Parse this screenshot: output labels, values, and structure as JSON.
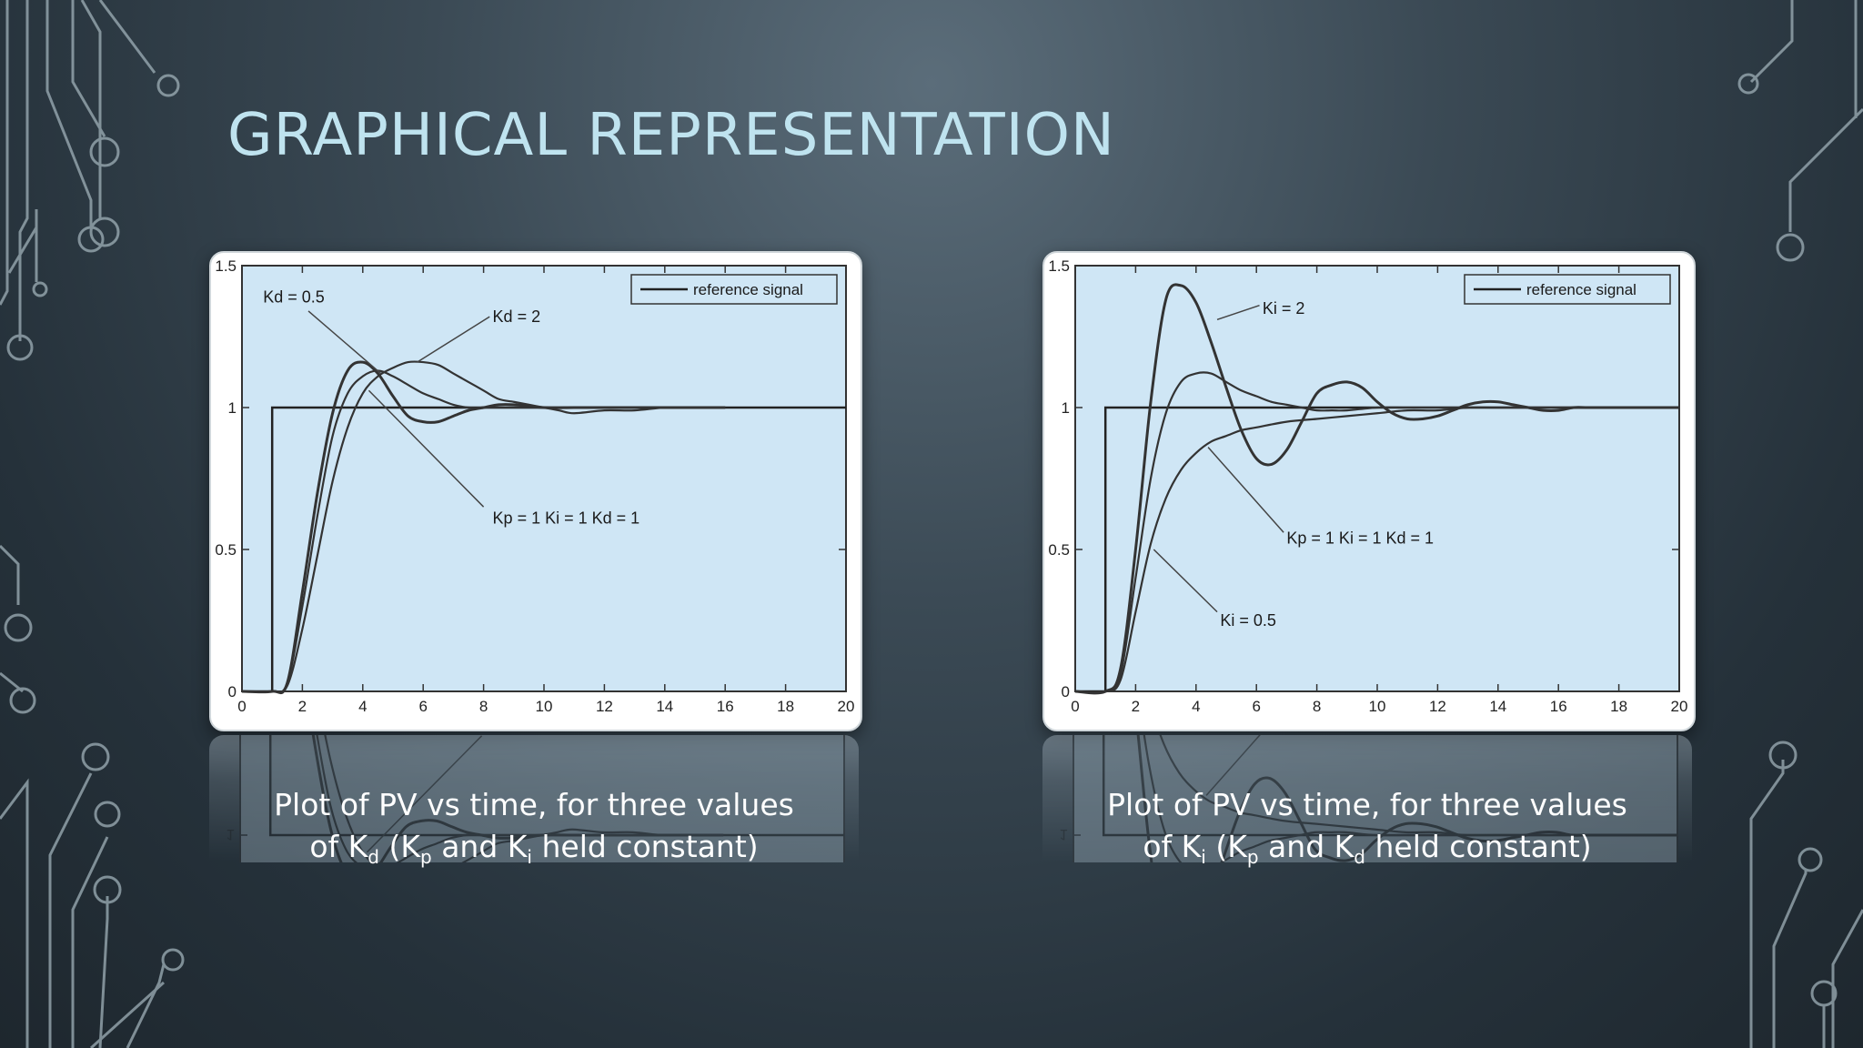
{
  "slide": {
    "title": "GRAPHICAL REPRESENTATION",
    "background_color": "#2e3b45",
    "title_color": "#bfe3ef",
    "decoration": "circuit-lines"
  },
  "captions": [
    {
      "line1": "Plot of PV vs time, for three values",
      "pre": "of K",
      "sub1": "d",
      "mid1": " (K",
      "sub2": "p",
      "mid2": " and K",
      "sub3": "i",
      "post": " held constant)"
    },
    {
      "line1": "Plot of PV vs time, for three values",
      "pre": "of K",
      "sub1": "i",
      "mid1": " (K",
      "sub2": "p",
      "mid2": " and K",
      "sub3": "d",
      "post": " held constant)"
    }
  ],
  "chart_data": [
    {
      "type": "line",
      "title": "",
      "xlabel": "",
      "ylabel": "",
      "xlim": [
        0,
        20
      ],
      "ylim": [
        0,
        1.5
      ],
      "x_ticks": [
        "0",
        "2",
        "4",
        "6",
        "8",
        "10",
        "12",
        "14",
        "16",
        "18",
        "20"
      ],
      "y_ticks": [
        {
          "value": 0,
          "label": "0"
        },
        {
          "value": 0.5,
          "label": "0.5"
        },
        {
          "value": 1,
          "label": "1"
        },
        {
          "value": 1.5,
          "label": "1.5"
        }
      ],
      "legend": {
        "position": "top-right",
        "entries": [
          "reference signal"
        ]
      },
      "plot_bg": "#cfe6f5",
      "reference": {
        "name": "reference signal",
        "x": [
          0,
          1,
          1,
          20
        ],
        "y": [
          0,
          0,
          1,
          1
        ]
      },
      "series": [
        {
          "x": [
            0,
            1,
            1.5,
            2,
            2.5,
            3,
            3.5,
            4,
            4.5,
            5,
            5.5,
            6,
            6.5,
            7,
            7.5,
            8,
            8.5,
            9,
            10,
            11,
            12,
            13,
            14,
            15,
            16
          ],
          "y": [
            0,
            0,
            0.03,
            0.35,
            0.7,
            0.98,
            1.13,
            1.16,
            1.12,
            1.04,
            0.97,
            0.95,
            0.95,
            0.97,
            0.99,
            1.0,
            1.01,
            1.01,
            1.0,
            1.0,
            1.0,
            1.0,
            1.0,
            1.0,
            1.0
          ]
        },
        {
          "x": [
            0,
            1,
            1.5,
            2,
            2.5,
            3,
            3.5,
            4,
            4.5,
            5,
            5.5,
            6,
            6.5,
            7,
            7.5,
            8,
            8.5,
            9,
            10,
            11,
            12,
            13,
            14,
            15,
            16
          ],
          "y": [
            0,
            0,
            0.03,
            0.3,
            0.62,
            0.9,
            1.05,
            1.11,
            1.13,
            1.11,
            1.08,
            1.05,
            1.03,
            1.01,
            1.0,
            1.0,
            1.0,
            1.0,
            1.0,
            1.0,
            1.0,
            1.0,
            1.0,
            1.0,
            1.0
          ]
        },
        {
          "x": [
            0,
            1,
            1.5,
            2,
            2.5,
            3,
            3.5,
            4,
            4.5,
            5,
            5.5,
            6,
            6.5,
            7,
            7.5,
            8,
            8.5,
            9,
            9.5,
            10,
            10.5,
            11,
            12,
            13,
            14,
            15,
            16
          ],
          "y": [
            0,
            0,
            0.02,
            0.22,
            0.48,
            0.74,
            0.93,
            1.05,
            1.11,
            1.14,
            1.16,
            1.16,
            1.15,
            1.12,
            1.09,
            1.06,
            1.03,
            1.02,
            1.01,
            1.0,
            0.99,
            0.98,
            0.99,
            0.99,
            1.0,
            1.0,
            1.0
          ]
        }
      ],
      "annotations": [
        {
          "text": "Kd = 0.5",
          "label_x": 0.7,
          "label_y": 1.39,
          "line": [
            [
              2.2,
              1.34
            ],
            [
              4.6,
              1.12
            ]
          ]
        },
        {
          "text": "Kd = 2",
          "label_x": 8.3,
          "label_y": 1.32,
          "line": [
            [
              8.2,
              1.32
            ],
            [
              5.8,
              1.16
            ]
          ]
        },
        {
          "text": "Kp = 1  Ki = 1  Kd = 1",
          "label_x": 8.3,
          "label_y": 0.61,
          "line": [
            [
              8.0,
              0.65
            ],
            [
              4.2,
              1.06
            ]
          ]
        }
      ]
    },
    {
      "type": "line",
      "title": "",
      "xlabel": "",
      "ylabel": "",
      "xlim": [
        0,
        20
      ],
      "ylim": [
        0,
        1.5
      ],
      "x_ticks": [
        "0",
        "2",
        "4",
        "6",
        "8",
        "10",
        "12",
        "14",
        "16",
        "18",
        "20"
      ],
      "y_ticks": [
        {
          "value": 0,
          "label": "0"
        },
        {
          "value": 0.5,
          "label": "0.5"
        },
        {
          "value": 1,
          "label": "1"
        },
        {
          "value": 1.5,
          "label": "1.5"
        }
      ],
      "legend": {
        "position": "top-right",
        "entries": [
          "reference signal"
        ]
      },
      "plot_bg": "#cfe6f5",
      "reference": {
        "name": "reference signal",
        "x": [
          0,
          1,
          1,
          20
        ],
        "y": [
          0,
          0,
          1,
          1
        ]
      },
      "series": [
        {
          "x": [
            0,
            1,
            1.5,
            2,
            2.5,
            3,
            3.5,
            4,
            4.5,
            5,
            5.5,
            6,
            6.5,
            7,
            7.5,
            8,
            8.5,
            9,
            9.5,
            10,
            10.5,
            11,
            11.5,
            12,
            12.5,
            13,
            13.5,
            14,
            14.5,
            15,
            15.5,
            16,
            16.5,
            17,
            18,
            19,
            20
          ],
          "y": [
            0,
            0,
            0.08,
            0.5,
            1.02,
            1.38,
            1.43,
            1.37,
            1.23,
            1.07,
            0.92,
            0.82,
            0.8,
            0.85,
            0.95,
            1.05,
            1.08,
            1.09,
            1.07,
            1.02,
            0.98,
            0.96,
            0.96,
            0.97,
            0.99,
            1.01,
            1.02,
            1.02,
            1.01,
            1.0,
            0.99,
            0.99,
            1.0,
            1.0,
            1.0,
            1.0,
            1.0
          ]
        },
        {
          "x": [
            0,
            1,
            1.5,
            2,
            2.5,
            3,
            3.5,
            4,
            4.5,
            5,
            5.5,
            6,
            6.5,
            7,
            7.5,
            8,
            8.5,
            9,
            10,
            11,
            12,
            14,
            16,
            18,
            20
          ],
          "y": [
            0,
            0,
            0.06,
            0.4,
            0.75,
            0.98,
            1.09,
            1.12,
            1.12,
            1.09,
            1.06,
            1.04,
            1.02,
            1.01,
            1.0,
            0.99,
            0.99,
            0.99,
            1.0,
            1.0,
            1.0,
            1.0,
            1.0,
            1.0,
            1.0
          ]
        },
        {
          "x": [
            0,
            1,
            1.5,
            2,
            2.5,
            3,
            3.5,
            4,
            4.5,
            5,
            5.5,
            6,
            7,
            8,
            9,
            10,
            11,
            12,
            13,
            14,
            16,
            18,
            20
          ],
          "y": [
            0,
            0,
            0.04,
            0.28,
            0.52,
            0.68,
            0.78,
            0.84,
            0.88,
            0.9,
            0.92,
            0.93,
            0.95,
            0.96,
            0.97,
            0.98,
            0.99,
            0.99,
            1.0,
            1.0,
            1.0,
            1.0,
            1.0
          ]
        }
      ],
      "annotations": [
        {
          "text": "Ki = 2",
          "label_x": 6.2,
          "label_y": 1.35,
          "line": [
            [
              6.1,
              1.36
            ],
            [
              4.7,
              1.31
            ]
          ]
        },
        {
          "text": "Kp = 1  Ki = 1  Kd = 1",
          "label_x": 7.0,
          "label_y": 0.54,
          "line": [
            [
              6.9,
              0.56
            ],
            [
              4.4,
              0.86
            ]
          ]
        },
        {
          "text": "Ki = 0.5",
          "label_x": 4.8,
          "label_y": 0.25,
          "line": [
            [
              4.7,
              0.28
            ],
            [
              2.6,
              0.5
            ]
          ]
        }
      ]
    }
  ]
}
